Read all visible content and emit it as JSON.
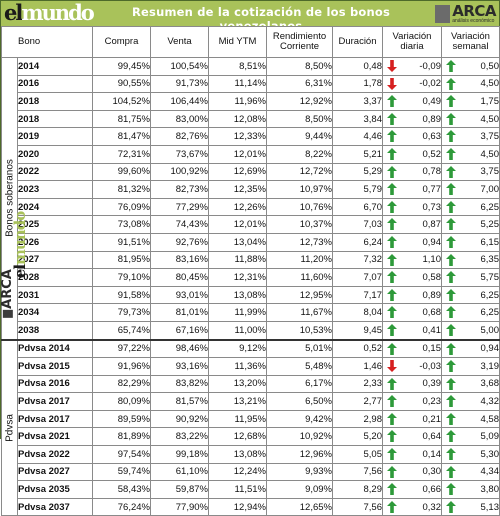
{
  "header": {
    "logo_el": "el",
    "logo_mundo": "mundo",
    "title": "Resumen de la cotización de los bonos venezolanos",
    "arca_name": "ARCA",
    "arca_sub": "análisis económico"
  },
  "colors": {
    "header_bg": "#a9c25a",
    "up": "#2e9a3a",
    "down": "#d62020"
  },
  "columns": [
    "Bono",
    "Compra",
    "Venta",
    "Mid YTM",
    "Rendimiento Corriente",
    "Duración",
    "Variación diaria",
    "Variación semanal"
  ],
  "groups": [
    {
      "label": "Bonos soberanos",
      "rows": [
        {
          "bono": "2014",
          "compra": "99,45%",
          "venta": "100,54%",
          "ytm": "8,51%",
          "rend": "8,50%",
          "dur": "0,48",
          "vd": "-0,09",
          "vd_dir": "down",
          "vs": "0,50",
          "vs_dir": "up"
        },
        {
          "bono": "2016",
          "compra": "90,55%",
          "venta": "91,73%",
          "ytm": "11,14%",
          "rend": "6,31%",
          "dur": "1,78",
          "vd": "-0,02",
          "vd_dir": "down",
          "vs": "4,50",
          "vs_dir": "up"
        },
        {
          "bono": "2018",
          "compra": "104,52%",
          "venta": "106,44%",
          "ytm": "11,96%",
          "rend": "12,92%",
          "dur": "3,37",
          "vd": "0,49",
          "vd_dir": "up",
          "vs": "1,75",
          "vs_dir": "up"
        },
        {
          "bono": "2018",
          "compra": "81,75%",
          "venta": "83,00%",
          "ytm": "12,08%",
          "rend": "8,50%",
          "dur": "3,84",
          "vd": "0,89",
          "vd_dir": "up",
          "vs": "4,50",
          "vs_dir": "up"
        },
        {
          "bono": "2019",
          "compra": "81,47%",
          "venta": "82,76%",
          "ytm": "12,33%",
          "rend": "9,44%",
          "dur": "4,46",
          "vd": "0,63",
          "vd_dir": "up",
          "vs": "3,75",
          "vs_dir": "up"
        },
        {
          "bono": "2020",
          "compra": "72,31%",
          "venta": "73,67%",
          "ytm": "12,01%",
          "rend": "8,22%",
          "dur": "5,21",
          "vd": "0,52",
          "vd_dir": "up",
          "vs": "4,50",
          "vs_dir": "up"
        },
        {
          "bono": "2022",
          "compra": "99,60%",
          "venta": "100,92%",
          "ytm": "12,69%",
          "rend": "12,72%",
          "dur": "5,29",
          "vd": "0,78",
          "vd_dir": "up",
          "vs": "3,75",
          "vs_dir": "up"
        },
        {
          "bono": "2023",
          "compra": "81,32%",
          "venta": "82,73%",
          "ytm": "12,35%",
          "rend": "10,97%",
          "dur": "5,79",
          "vd": "0,77",
          "vd_dir": "up",
          "vs": "7,00",
          "vs_dir": "up"
        },
        {
          "bono": "2024",
          "compra": "76,09%",
          "venta": "77,29%",
          "ytm": "12,26%",
          "rend": "10,76%",
          "dur": "6,70",
          "vd": "0,73",
          "vd_dir": "up",
          "vs": "6,25",
          "vs_dir": "up"
        },
        {
          "bono": "2025",
          "compra": "73,08%",
          "venta": "74,43%",
          "ytm": "12,01%",
          "rend": "10,37%",
          "dur": "7,03",
          "vd": "0,87",
          "vd_dir": "up",
          "vs": "5,25",
          "vs_dir": "up"
        },
        {
          "bono": "2026",
          "compra": "91,51%",
          "venta": "92,76%",
          "ytm": "13,04%",
          "rend": "12,73%",
          "dur": "6,24",
          "vd": "0,94",
          "vd_dir": "up",
          "vs": "6,15",
          "vs_dir": "up"
        },
        {
          "bono": "2027",
          "compra": "81,95%",
          "venta": "83,16%",
          "ytm": "11,88%",
          "rend": "11,20%",
          "dur": "7,32",
          "vd": "1,10",
          "vd_dir": "up",
          "vs": "6,35",
          "vs_dir": "up"
        },
        {
          "bono": "2028",
          "compra": "79,10%",
          "venta": "80,45%",
          "ytm": "12,31%",
          "rend": "11,60%",
          "dur": "7,07",
          "vd": "0,58",
          "vd_dir": "up",
          "vs": "5,75",
          "vs_dir": "up"
        },
        {
          "bono": "2031",
          "compra": "91,58%",
          "venta": "93,01%",
          "ytm": "13,08%",
          "rend": "12,95%",
          "dur": "7,17",
          "vd": "0,89",
          "vd_dir": "up",
          "vs": "6,25",
          "vs_dir": "up"
        },
        {
          "bono": "2034",
          "compra": "79,73%",
          "venta": "81,01%",
          "ytm": "11,99%",
          "rend": "11,67%",
          "dur": "8,04",
          "vd": "0,68",
          "vd_dir": "up",
          "vs": "6,25",
          "vs_dir": "up"
        },
        {
          "bono": "2038",
          "compra": "65,74%",
          "venta": "67,16%",
          "ytm": "11,00%",
          "rend": "10,53%",
          "dur": "9,45",
          "vd": "0,41",
          "vd_dir": "up",
          "vs": "5,00",
          "vs_dir": "up"
        }
      ]
    },
    {
      "label": "Pdvsa",
      "rows": [
        {
          "bono": "Pdvsa 2014",
          "compra": "97,22%",
          "venta": "98,46%",
          "ytm": "9,12%",
          "rend": "5,01%",
          "dur": "0,52",
          "vd": "0,15",
          "vd_dir": "up",
          "vs": "0,94",
          "vs_dir": "up"
        },
        {
          "bono": "Pdvsa 2015",
          "compra": "91,96%",
          "venta": "93,16%",
          "ytm": "11,36%",
          "rend": "5,48%",
          "dur": "1,46",
          "vd": "-0,03",
          "vd_dir": "down",
          "vs": "3,19",
          "vs_dir": "up"
        },
        {
          "bono": "Pdvsa 2016",
          "compra": "82,29%",
          "venta": "83,82%",
          "ytm": "13,20%",
          "rend": "6,17%",
          "dur": "2,33",
          "vd": "0,39",
          "vd_dir": "up",
          "vs": "3,68",
          "vs_dir": "up"
        },
        {
          "bono": "Pdvsa 2017",
          "compra": "80,09%",
          "venta": "81,57%",
          "ytm": "13,21%",
          "rend": "6,50%",
          "dur": "2,77",
          "vd": "0,23",
          "vd_dir": "up",
          "vs": "4,32",
          "vs_dir": "up"
        },
        {
          "bono": "Pdvsa 2017",
          "compra": "89,59%",
          "venta": "90,92%",
          "ytm": "11,95%",
          "rend": "9,42%",
          "dur": "2,98",
          "vd": "0,21",
          "vd_dir": "up",
          "vs": "4,58",
          "vs_dir": "up"
        },
        {
          "bono": "Pdvsa 2021",
          "compra": "81,89%",
          "venta": "83,22%",
          "ytm": "12,68%",
          "rend": "10,92%",
          "dur": "5,20",
          "vd": "0,64",
          "vd_dir": "up",
          "vs": "5,09",
          "vs_dir": "up"
        },
        {
          "bono": "Pdvsa 2022",
          "compra": "97,54%",
          "venta": "99,18%",
          "ytm": "13,08%",
          "rend": "12,96%",
          "dur": "5,05",
          "vd": "0,14",
          "vd_dir": "up",
          "vs": "5,30",
          "vs_dir": "up"
        },
        {
          "bono": "Pdvsa 2027",
          "compra": "59,74%",
          "venta": "61,10%",
          "ytm": "12,24%",
          "rend": "9,93%",
          "dur": "7,56",
          "vd": "0,30",
          "vd_dir": "up",
          "vs": "4,34",
          "vs_dir": "up"
        },
        {
          "bono": "Pdvsa 2035",
          "compra": "58,43%",
          "venta": "59,87%",
          "ytm": "11,51%",
          "rend": "9,09%",
          "dur": "8,29",
          "vd": "0,66",
          "vd_dir": "up",
          "vs": "3,80",
          "vs_dir": "up"
        },
        {
          "bono": "Pdvsa 2037",
          "compra": "76,24%",
          "venta": "77,90%",
          "ytm": "12,94%",
          "rend": "12,65%",
          "dur": "7,56",
          "vd": "0,32",
          "vd_dir": "up",
          "vs": "5,13",
          "vs_dir": "up"
        }
      ]
    }
  ],
  "watermark": {
    "arca": "ARCA",
    "el": "el",
    "mundo": "mundo"
  }
}
